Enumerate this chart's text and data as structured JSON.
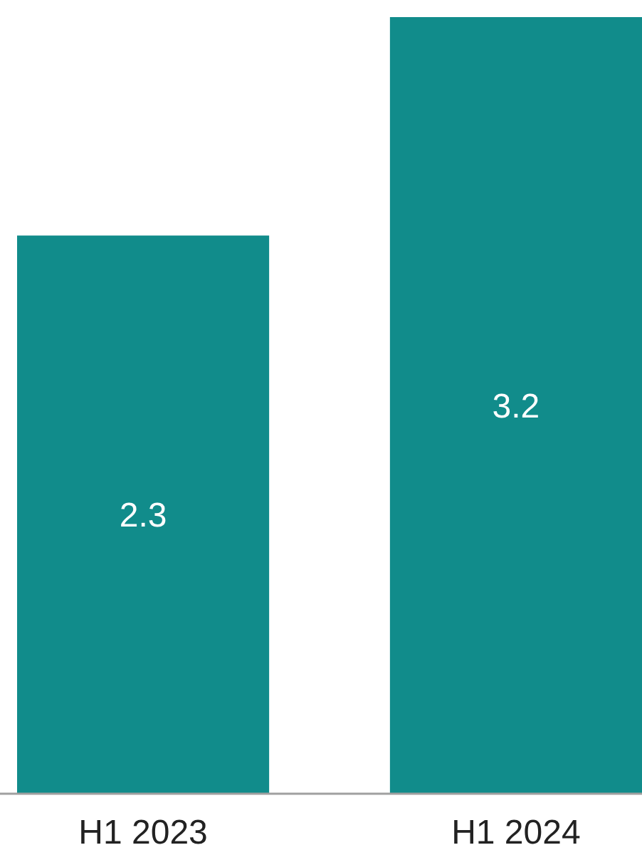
{
  "chart_data": {
    "type": "bar",
    "categories": [
      "H1 2023",
      "H1 2024"
    ],
    "values": [
      2.3,
      3.2
    ],
    "color": "#118c8b",
    "data_labels": true
  }
}
